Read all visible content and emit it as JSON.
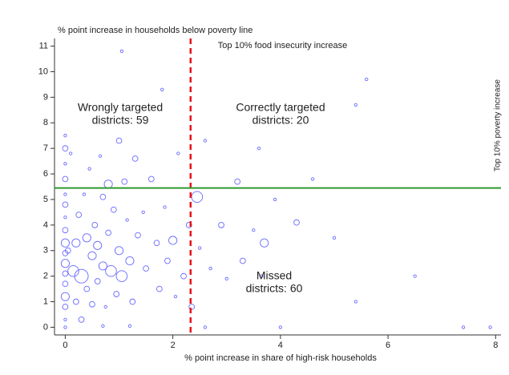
{
  "chart_data": {
    "type": "scatter",
    "ylabel": "% point increase in households below poverty line",
    "xlabel": "% point increase in share of high-risk households",
    "xlim": [
      -0.2,
      8.1
    ],
    "ylim": [
      -0.3,
      11.3
    ],
    "xticks": [
      0,
      2,
      4,
      6,
      8
    ],
    "yticks": [
      0,
      1,
      2,
      3,
      4,
      5,
      6,
      7,
      8,
      9,
      10,
      11
    ],
    "series": [
      {
        "color": "#6a6aff",
        "x": [
          0,
          0,
          0,
          0,
          0,
          0,
          0,
          0,
          0,
          0,
          0,
          0,
          0,
          0,
          0,
          0,
          0,
          0.05,
          0.1,
          0.15,
          0.2,
          0.2,
          0.25,
          0.3,
          0.3,
          0.35,
          0.4,
          0.4,
          0.45,
          0.5,
          0.5,
          0.55,
          0.6,
          0.6,
          0.65,
          0.7,
          0.7,
          0.75,
          0.8,
          0.8,
          0.85,
          0.9,
          0.95,
          1.0,
          1.0,
          1.05,
          1.05,
          1.1,
          1.15,
          1.2,
          1.25,
          1.3,
          1.35,
          1.45,
          1.5,
          1.6,
          1.7,
          1.75,
          1.8,
          1.85,
          1.9,
          2.0,
          2.05,
          2.1,
          2.2,
          2.3,
          2.35,
          2.45,
          2.5,
          2.6,
          2.7,
          2.9,
          3.0,
          3.2,
          3.3,
          3.5,
          3.6,
          3.65,
          3.7,
          3.9,
          4.3,
          4.6,
          5.0,
          5.4,
          5.6,
          5.4,
          6.5,
          7.4,
          7.9,
          4.0,
          2.6,
          1.2,
          0.7
        ],
        "values": [
          7.5,
          7.0,
          6.4,
          5.8,
          5.2,
          4.8,
          4.3,
          3.8,
          3.3,
          2.9,
          2.5,
          2.1,
          1.7,
          1.2,
          0.8,
          0.3,
          0.0,
          3.0,
          6.8,
          2.2,
          3.3,
          1.0,
          4.4,
          2.0,
          0.3,
          5.2,
          3.5,
          1.5,
          6.2,
          2.8,
          0.9,
          4.0,
          3.2,
          1.8,
          6.7,
          5.1,
          2.4,
          0.8,
          5.6,
          3.7,
          2.2,
          4.6,
          1.3,
          7.3,
          3.0,
          10.8,
          2.0,
          5.7,
          4.2,
          2.6,
          1.0,
          6.6,
          3.6,
          4.5,
          2.3,
          5.8,
          3.3,
          1.5,
          9.3,
          4.7,
          2.6,
          3.4,
          1.2,
          6.8,
          2.0,
          4.0,
          0.8,
          5.1,
          3.1,
          7.3,
          2.3,
          4.0,
          1.9,
          5.7,
          2.6,
          3.8,
          7.0,
          2.0,
          3.3,
          5.0,
          4.1,
          5.8,
          3.5,
          1.0,
          9.7,
          8.7,
          2.0,
          0.0,
          0.0,
          0.0,
          0.0,
          0.05,
          0.05
        ],
        "sizes": [
          1,
          2,
          1,
          2,
          1,
          2,
          1,
          2,
          3,
          2,
          3,
          2,
          2,
          3,
          2,
          1,
          1,
          2,
          1,
          4,
          3,
          2,
          2,
          5,
          2,
          1,
          3,
          2,
          1,
          3,
          2,
          2,
          3,
          2,
          1,
          2,
          3,
          1,
          3,
          2,
          4,
          2,
          2,
          2,
          3,
          1,
          4,
          2,
          1,
          3,
          2,
          2,
          2,
          1,
          2,
          2,
          2,
          2,
          1,
          1,
          2,
          3,
          1,
          1,
          2,
          2,
          2,
          4,
          1,
          1,
          1,
          2,
          1,
          2,
          2,
          1,
          1,
          1,
          3,
          1,
          2,
          1,
          1,
          1,
          1,
          1,
          1,
          1,
          1,
          1,
          1,
          1,
          1
        ]
      }
    ],
    "reference_lines": [
      {
        "axis": "x",
        "value": 2.33,
        "color": "#e8141b",
        "label": "Top 10% food insecurity increase"
      },
      {
        "axis": "y",
        "value": 5.45,
        "color": "#2e9a2e",
        "label": "Top 10% poverty increase"
      }
    ],
    "annotations": [
      [
        "Wrongly targeted",
        "districts: 59"
      ],
      [
        "Correctly targeted",
        "districts: 20"
      ],
      [
        "Missed",
        "districts: 60"
      ]
    ]
  }
}
